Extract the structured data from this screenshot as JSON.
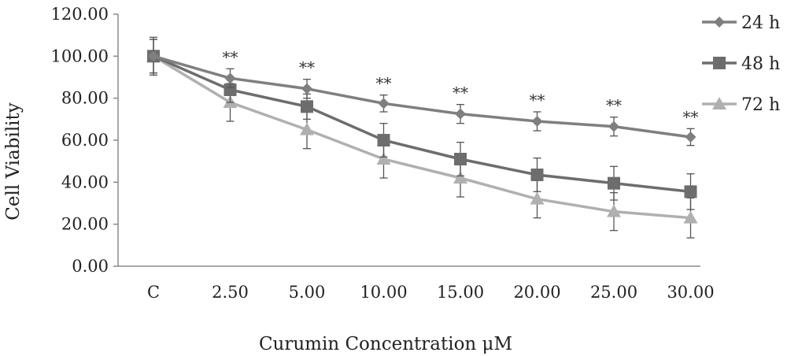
{
  "chart_data": {
    "type": "line",
    "categories": [
      "C",
      "2.50",
      "5.00",
      "10.00",
      "15.00",
      "20.00",
      "25.00",
      "30.00"
    ],
    "series": [
      {
        "name": "24 h",
        "color": "#7f7f7f",
        "marker": "diamond",
        "values": [
          100,
          89.5,
          84.5,
          77.5,
          72.5,
          69,
          66.5,
          61.5
        ],
        "errors": [
          8,
          4.5,
          4.5,
          4,
          4.5,
          4.5,
          4.5,
          4
        ]
      },
      {
        "name": "48 h",
        "color": "#6d6d6d",
        "marker": "square",
        "values": [
          100,
          84,
          76,
          60,
          51,
          43.5,
          39.5,
          35.5
        ],
        "errors": [
          8,
          6,
          6,
          8,
          8,
          8,
          8,
          8.5
        ]
      },
      {
        "name": "72 h",
        "color": "#b0b0b0",
        "marker": "triangle",
        "values": [
          100,
          78,
          65,
          51,
          42,
          32,
          26,
          23
        ],
        "errors": [
          9,
          9,
          9,
          9,
          9,
          9,
          9,
          9.5
        ]
      }
    ],
    "annotations": [
      "",
      "**",
      "**",
      "**",
      "**",
      "**",
      "**",
      "**"
    ],
    "y_ticks": [
      "0.00",
      "20.00",
      "40.00",
      "60.00",
      "80.00",
      "100.00",
      "120.00"
    ],
    "ylim": [
      0,
      120
    ],
    "xlabel": "Curumin Concentration μM",
    "ylabel": "Cell Viability",
    "grid": false,
    "legend_position": "right"
  }
}
